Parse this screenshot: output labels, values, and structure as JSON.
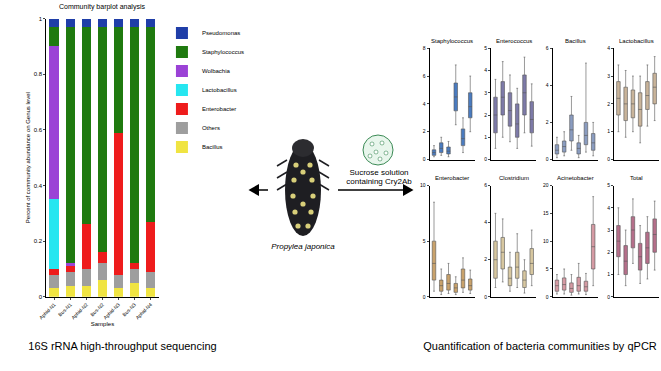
{
  "chart_data": [
    {
      "type": "bar",
      "stacked": true,
      "title": "Community barplot analysis",
      "x_label": "Samples",
      "y_label": "Percent of community abundance on Genus level",
      "categories": [
        "Aphid-N1",
        "Bus-N1",
        "Aphid-N2",
        "Bus-N2",
        "Aphid-N3",
        "Bus-N3",
        "Aphid-N4"
      ],
      "series": [
        {
          "name": "Bacillus",
          "color": "#f0e442",
          "values": [
            0.03,
            0.04,
            0.04,
            0.06,
            0.03,
            0.05,
            0.03
          ]
        },
        {
          "name": "Others",
          "color": "#9e9e9e",
          "values": [
            0.05,
            0.05,
            0.06,
            0.06,
            0.05,
            0.05,
            0.06
          ]
        },
        {
          "name": "Enterobacter",
          "color": "#ee1c1c",
          "values": [
            0.02,
            0.02,
            0.16,
            0.04,
            0.51,
            0.02,
            0.18
          ]
        },
        {
          "name": "Lactobacillus",
          "color": "#26e6f0",
          "values": [
            0.25,
            0,
            0,
            0,
            0,
            0,
            0
          ]
        },
        {
          "name": "Wolbachia",
          "color": "#9b42d6",
          "values": [
            0.55,
            0.01,
            0,
            0,
            0,
            0,
            0
          ]
        },
        {
          "name": "Staphylococcus",
          "color": "#1f7a0f",
          "values": [
            0.07,
            0.85,
            0.71,
            0.81,
            0.38,
            0.85,
            0.7
          ]
        },
        {
          "name": "Pseudomonas",
          "color": "#1f3ea8",
          "values": [
            0.03,
            0.03,
            0.03,
            0.03,
            0.03,
            0.03,
            0.03
          ]
        }
      ],
      "ylim": [
        0,
        1
      ],
      "yticks": [
        0,
        0.2,
        0.4,
        0.6,
        0.8,
        1
      ],
      "legend": "right"
    },
    {
      "type": "box",
      "title": "Staphylococcus",
      "color": "#4a7bbf",
      "tick_labels": "y",
      "min": [
        0.2,
        0.3,
        0.2,
        2.5,
        0.5,
        2
      ],
      "q1": [
        0.3,
        0.5,
        0.4,
        3.5,
        1,
        3
      ],
      "median": [
        0.5,
        0.8,
        0.6,
        4.5,
        1.5,
        3.8
      ],
      "q3": [
        0.7,
        1.2,
        0.9,
        5.5,
        2.2,
        4.8
      ],
      "max": [
        1,
        1.6,
        1.3,
        6.8,
        3,
        6
      ],
      "ylim": [
        0,
        8
      ],
      "yticks": [
        0,
        2,
        4,
        6,
        8
      ]
    },
    {
      "type": "box",
      "title": "Enterococcus",
      "color": "#7d7aa8",
      "tick_labels": "y",
      "min": [
        0.5,
        1,
        0.8,
        0.5,
        1.2,
        0.6
      ],
      "q1": [
        1.2,
        2,
        1.5,
        1,
        2,
        1.2
      ],
      "median": [
        2,
        2.8,
        2.2,
        1.6,
        3,
        1.8
      ],
      "q3": [
        2.8,
        3.5,
        3,
        2.5,
        3.8,
        2.6
      ],
      "max": [
        3.6,
        4.4,
        3.8,
        3.2,
        4.6,
        3.4
      ],
      "ylim": [
        0,
        5
      ],
      "yticks": [
        0,
        1,
        2,
        3,
        4,
        5
      ]
    },
    {
      "type": "box",
      "title": "Bacillus",
      "color": "#8a9cc0",
      "tick_labels": "y",
      "min": [
        0.1,
        0.2,
        0.5,
        0.1,
        0.4,
        0.2
      ],
      "q1": [
        0.3,
        0.4,
        1,
        0.3,
        0.8,
        0.5
      ],
      "median": [
        0.5,
        0.7,
        1.6,
        0.6,
        1.3,
        0.9
      ],
      "q3": [
        0.8,
        1,
        2.4,
        0.9,
        2,
        1.4
      ],
      "max": [
        1.2,
        1.5,
        3.4,
        1.3,
        5.2,
        2
      ],
      "ylim": [
        0,
        6
      ],
      "yticks": [
        0,
        2,
        4,
        6
      ]
    },
    {
      "type": "box",
      "title": "Lactobacillus",
      "color": "#c9b49a",
      "tick_labels": "y",
      "min": [
        1,
        0.8,
        1,
        0.6,
        1.2,
        1.4
      ],
      "q1": [
        1.6,
        1.4,
        1.5,
        1.2,
        1.8,
        2
      ],
      "median": [
        2.2,
        2,
        2,
        1.8,
        2.3,
        2.6
      ],
      "q3": [
        2.8,
        2.6,
        2.5,
        2.4,
        2.8,
        3.1
      ],
      "max": [
        3.4,
        3.2,
        3,
        3,
        3.4,
        3.7
      ],
      "ylim": [
        0,
        4
      ],
      "yticks": [
        0,
        1,
        2,
        3,
        4
      ]
    },
    {
      "type": "box",
      "title": "Enterobacter",
      "color": "#c9a26b",
      "tick_labels": "y",
      "min": [
        0.5,
        0.2,
        0.3,
        0.2,
        0.4,
        0.3
      ],
      "q1": [
        1.5,
        0.5,
        0.6,
        0.4,
        0.8,
        0.6
      ],
      "median": [
        3,
        1,
        1.2,
        0.8,
        1.5,
        1
      ],
      "q3": [
        5,
        1.5,
        2,
        1.2,
        2.5,
        1.6
      ],
      "max": [
        8.5,
        2.5,
        3,
        1.8,
        3.5,
        2.4
      ],
      "ylim": [
        0,
        10
      ],
      "yticks": [
        0,
        5,
        10
      ]
    },
    {
      "type": "box",
      "title": "Clostridium",
      "color": "#d7c7a0",
      "tick_labels": "y",
      "min": [
        0.5,
        0.8,
        0.3,
        0.5,
        0.2,
        0.6
      ],
      "q1": [
        1,
        1.5,
        0.6,
        1,
        0.5,
        1.2
      ],
      "median": [
        2,
        2.4,
        1,
        1.6,
        0.9,
        1.8
      ],
      "q3": [
        3,
        3.2,
        1.6,
        2.4,
        1.4,
        2.6
      ],
      "max": [
        4.5,
        4.2,
        2.4,
        3.4,
        2,
        3.6
      ],
      "ylim": [
        0,
        6
      ],
      "yticks": [
        0,
        2,
        4,
        6
      ]
    },
    {
      "type": "box",
      "title": "Acinetobacter",
      "color": "#d59aa3",
      "tick_labels": "y",
      "min": [
        0.5,
        0.5,
        0.3,
        0.5,
        0.4,
        2
      ],
      "q1": [
        1,
        1.2,
        0.8,
        1,
        1,
        5
      ],
      "median": [
        2,
        2.2,
        1.5,
        2,
        1.8,
        9
      ],
      "q3": [
        3,
        3.4,
        2.5,
        3.5,
        2.8,
        13
      ],
      "max": [
        4,
        5,
        4,
        6,
        4.2,
        18
      ],
      "ylim": [
        0,
        20
      ],
      "yticks": [
        0,
        5,
        10,
        15,
        20
      ]
    },
    {
      "type": "box",
      "title": "Total",
      "color": "#b56f8a",
      "tick_labels": "y",
      "min": [
        1,
        0.5,
        1.5,
        0.6,
        0.8,
        1.2
      ],
      "q1": [
        1.8,
        1,
        2.2,
        1.2,
        1.5,
        2
      ],
      "median": [
        2.5,
        1.6,
        3,
        1.8,
        2.2,
        2.8
      ],
      "q3": [
        3.2,
        2.3,
        3.6,
        2.4,
        2.9,
        3.5
      ],
      "max": [
        4,
        3,
        4.4,
        3.2,
        3.6,
        4.3
      ],
      "ylim": [
        0,
        5
      ],
      "yticks": [
        0,
        1,
        2,
        3,
        4,
        5
      ]
    }
  ],
  "illustration": {
    "organism": "Propylea japonica",
    "treatment": "Sucrose solution containing Cry2Ab"
  },
  "captions": {
    "left": "16S rRNA high-throughput sequencing",
    "right": "Quantification of bacteria communities by qPCR"
  }
}
